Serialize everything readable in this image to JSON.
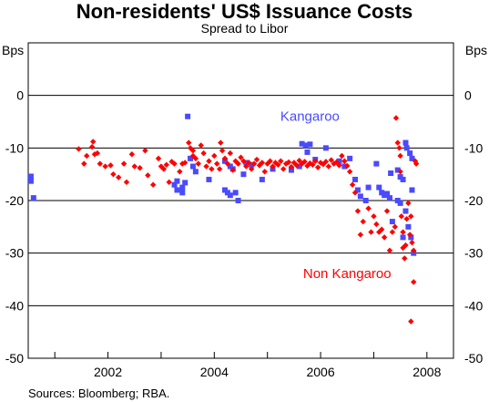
{
  "chart_data": {
    "type": "scatter",
    "title": "Non-residents' US$ Issuance Costs",
    "subtitle": "Spread to Libor",
    "source": "Sources: Bloomberg; RBA.",
    "y_unit_left": "Bps",
    "y_unit_right": "Bps",
    "ylim": [
      -50,
      10
    ],
    "yticks": [
      0,
      -10,
      -20,
      -30,
      -40,
      -50
    ],
    "xlim": [
      2000.5,
      2008.5
    ],
    "xticks": [
      2002,
      2004,
      2006,
      2008
    ],
    "x_grid_years": [
      2001,
      2002,
      2003,
      2004,
      2005,
      2006,
      2007,
      2008
    ],
    "grid": "horizontal",
    "series": [
      {
        "name": "Kangaroo",
        "color": "#4a4aff",
        "marker": "square",
        "points": [
          [
            2000.55,
            -16.3
          ],
          [
            2000.55,
            -15.4
          ],
          [
            2000.6,
            -19.5
          ],
          [
            2003.25,
            -17
          ],
          [
            2003.3,
            -16.3
          ],
          [
            2003.3,
            -18
          ],
          [
            2003.4,
            -17.5
          ],
          [
            2003.4,
            -18.5
          ],
          [
            2003.45,
            -16.6
          ],
          [
            2003.5,
            -4
          ],
          [
            2003.55,
            -12
          ],
          [
            2003.6,
            -13.5
          ],
          [
            2003.65,
            -14.5
          ],
          [
            2003.9,
            -16
          ],
          [
            2004.2,
            -18
          ],
          [
            2004.25,
            -18.5
          ],
          [
            2004.3,
            -19
          ],
          [
            2004.4,
            -18.5
          ],
          [
            2004.45,
            -20
          ],
          [
            2004.55,
            -15
          ],
          [
            2004.3,
            -13.5
          ],
          [
            2004.2,
            -12.5
          ],
          [
            2004.35,
            -14
          ],
          [
            2004.6,
            -12.8
          ],
          [
            2004.7,
            -13.2
          ],
          [
            2004.9,
            -16
          ],
          [
            2005.1,
            -14
          ],
          [
            2005.45,
            -14.2
          ],
          [
            2005.6,
            -13.5
          ],
          [
            2005.65,
            -9.2
          ],
          [
            2005.72,
            -9.5
          ],
          [
            2005.8,
            -9.3
          ],
          [
            2005.75,
            -10.8
          ],
          [
            2005.9,
            -12.2
          ],
          [
            2006.1,
            -10
          ],
          [
            2006.35,
            -12.5
          ],
          [
            2006.45,
            -13.5
          ],
          [
            2006.55,
            -12
          ],
          [
            2006.65,
            -16
          ],
          [
            2006.7,
            -18
          ],
          [
            2006.75,
            -19.2
          ],
          [
            2006.85,
            -20
          ],
          [
            2006.9,
            -17.5
          ],
          [
            2007.05,
            -13
          ],
          [
            2007.1,
            -17.5
          ],
          [
            2007.15,
            -18.5
          ],
          [
            2007.2,
            -19
          ],
          [
            2007.25,
            -18.7
          ],
          [
            2007.3,
            -19.5
          ],
          [
            2007.32,
            -14.8
          ],
          [
            2007.45,
            -14.2
          ],
          [
            2007.5,
            -15.5
          ],
          [
            2007.55,
            -16
          ],
          [
            2007.45,
            -20
          ],
          [
            2007.5,
            -20.5
          ],
          [
            2007.6,
            -22
          ],
          [
            2007.65,
            -25
          ],
          [
            2007.55,
            -27
          ],
          [
            2007.6,
            -9
          ],
          [
            2007.62,
            -10
          ],
          [
            2007.68,
            -11
          ],
          [
            2007.72,
            -12
          ],
          [
            2007.72,
            -18
          ],
          [
            2007.7,
            -27
          ],
          [
            2007.75,
            -30
          ],
          [
            2007.35,
            -24
          ]
        ]
      },
      {
        "name": "Non Kangaroo",
        "color": "#ff0000",
        "marker": "diamond",
        "points": [
          [
            2001.45,
            -10.2
          ],
          [
            2001.55,
            -13
          ],
          [
            2001.6,
            -11.5
          ],
          [
            2001.7,
            -9.8
          ],
          [
            2001.72,
            -8.8
          ],
          [
            2001.75,
            -11.2
          ],
          [
            2001.8,
            -11
          ],
          [
            2001.85,
            -13
          ],
          [
            2001.95,
            -13.5
          ],
          [
            2002.05,
            -13.3
          ],
          [
            2002.1,
            -15
          ],
          [
            2002.2,
            -15.6
          ],
          [
            2002.3,
            -13
          ],
          [
            2002.35,
            -16.5
          ],
          [
            2002.45,
            -11.2
          ],
          [
            2002.5,
            -13.5
          ],
          [
            2002.6,
            -13.8
          ],
          [
            2002.7,
            -10.5
          ],
          [
            2002.75,
            -15.2
          ],
          [
            2002.85,
            -17
          ],
          [
            2002.95,
            -12
          ],
          [
            2003.0,
            -13.5
          ],
          [
            2003.05,
            -14
          ],
          [
            2003.1,
            -13.2
          ],
          [
            2003.15,
            -16.5
          ],
          [
            2003.2,
            -12.6
          ],
          [
            2003.25,
            -13
          ],
          [
            2003.35,
            -14.5
          ],
          [
            2003.4,
            -13
          ],
          [
            2003.45,
            -12.8
          ],
          [
            2003.52,
            -9
          ],
          [
            2003.55,
            -10
          ],
          [
            2003.6,
            -10.5
          ],
          [
            2003.6,
            -11.5
          ],
          [
            2003.65,
            -12
          ],
          [
            2003.7,
            -13
          ],
          [
            2003.75,
            -9.5
          ],
          [
            2003.8,
            -11
          ],
          [
            2003.85,
            -13.5
          ],
          [
            2003.9,
            -12.5
          ],
          [
            2003.95,
            -14
          ],
          [
            2004.0,
            -11.5
          ],
          [
            2004.05,
            -13
          ],
          [
            2004.1,
            -14
          ],
          [
            2004.12,
            -9
          ],
          [
            2004.15,
            -10.5
          ],
          [
            2004.2,
            -12
          ],
          [
            2004.25,
            -13
          ],
          [
            2004.3,
            -11
          ],
          [
            2004.35,
            -14.2
          ],
          [
            2004.4,
            -12.5
          ],
          [
            2004.45,
            -13
          ],
          [
            2004.5,
            -11.8
          ],
          [
            2004.55,
            -12.5
          ],
          [
            2004.6,
            -13.5
          ],
          [
            2004.65,
            -12.8
          ],
          [
            2004.7,
            -14
          ],
          [
            2004.75,
            -13
          ],
          [
            2004.8,
            -12.2
          ],
          [
            2004.85,
            -13.3
          ],
          [
            2004.9,
            -12.8
          ],
          [
            2004.95,
            -14.5
          ],
          [
            2005.0,
            -13
          ],
          [
            2005.05,
            -12.5
          ],
          [
            2005.1,
            -13.5
          ],
          [
            2005.15,
            -12.8
          ],
          [
            2005.2,
            -13.2
          ],
          [
            2005.25,
            -12.5
          ],
          [
            2005.3,
            -14
          ],
          [
            2005.35,
            -13
          ],
          [
            2005.4,
            -12.7
          ],
          [
            2005.45,
            -13.6
          ],
          [
            2005.5,
            -12.8
          ],
          [
            2005.55,
            -13.3
          ],
          [
            2005.6,
            -12.4
          ],
          [
            2005.65,
            -13
          ],
          [
            2005.7,
            -12.6
          ],
          [
            2005.75,
            -13.4
          ],
          [
            2005.8,
            -12.9
          ],
          [
            2005.85,
            -13.2
          ],
          [
            2005.9,
            -12.5
          ],
          [
            2005.95,
            -13.7
          ],
          [
            2006.0,
            -12.8
          ],
          [
            2006.05,
            -13.1
          ],
          [
            2006.1,
            -12.6
          ],
          [
            2006.15,
            -13.5
          ],
          [
            2006.2,
            -12.3
          ],
          [
            2006.25,
            -13
          ],
          [
            2006.3,
            -12.7
          ],
          [
            2006.35,
            -13.3
          ],
          [
            2006.4,
            -11.5
          ],
          [
            2006.45,
            -12.5
          ],
          [
            2006.5,
            -13.4
          ],
          [
            2006.55,
            -14.5
          ],
          [
            2006.6,
            -17
          ],
          [
            2006.65,
            -18.5
          ],
          [
            2006.7,
            -22
          ],
          [
            2006.75,
            -26.5
          ],
          [
            2006.8,
            -24
          ],
          [
            2006.9,
            -21.5
          ],
          [
            2006.95,
            -26
          ],
          [
            2007.0,
            -23
          ],
          [
            2007.05,
            -24.5
          ],
          [
            2007.1,
            -26
          ],
          [
            2007.15,
            -25.5
          ],
          [
            2007.2,
            -27
          ],
          [
            2007.25,
            -22
          ],
          [
            2007.3,
            -29.5
          ],
          [
            2007.35,
            -26
          ],
          [
            2007.4,
            -25
          ],
          [
            2007.42,
            -4.3
          ],
          [
            2007.45,
            -9
          ],
          [
            2007.48,
            -10
          ],
          [
            2007.5,
            -11.5
          ],
          [
            2007.5,
            -14.5
          ],
          [
            2007.52,
            -23
          ],
          [
            2007.55,
            -26
          ],
          [
            2007.55,
            -29
          ],
          [
            2007.58,
            -31
          ],
          [
            2007.6,
            -28.5
          ],
          [
            2007.62,
            -23.5
          ],
          [
            2007.65,
            -20.5
          ],
          [
            2007.68,
            -26.5
          ],
          [
            2007.7,
            -23
          ],
          [
            2007.72,
            -28
          ],
          [
            2007.75,
            -29.5
          ],
          [
            2007.78,
            -12.5
          ],
          [
            2007.8,
            -13
          ],
          [
            2007.7,
            -43
          ],
          [
            2007.75,
            -35.5
          ]
        ]
      }
    ],
    "annotations": [
      {
        "text": "Kangaroo",
        "series": 0,
        "x": 2005.8,
        "y": -4.8
      },
      {
        "text": "Non Kangaroo",
        "series": 1,
        "x": 2006.5,
        "y": -34.7
      }
    ]
  }
}
